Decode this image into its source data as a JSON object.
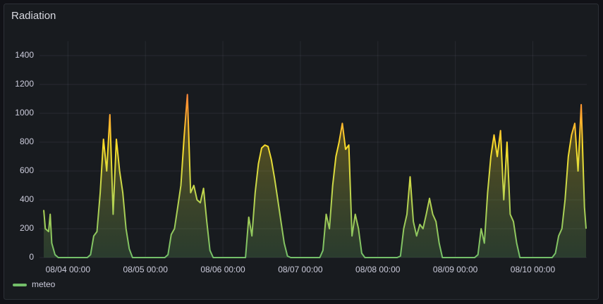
{
  "chart_data": {
    "type": "line",
    "title": "Radiation",
    "x": [
      "08/03 16:30",
      "08/03 17:00",
      "08/03 18:00",
      "08/03 18:30",
      "08/03 19:00",
      "08/03 20:00",
      "08/03 21:00",
      "08/04 06:00",
      "08/04 07:00",
      "08/04 08:00",
      "08/04 09:00",
      "08/04 10:00",
      "08/04 11:00",
      "08/04 12:00",
      "08/04 13:00",
      "08/04 14:00",
      "08/04 15:00",
      "08/04 16:00",
      "08/04 17:00",
      "08/04 18:00",
      "08/04 19:00",
      "08/04 20:00",
      "08/05 06:00",
      "08/05 07:00",
      "08/05 08:00",
      "08/05 09:00",
      "08/05 10:00",
      "08/05 11:00",
      "08/05 12:00",
      "08/05 13:00",
      "08/05 14:00",
      "08/05 15:00",
      "08/05 16:00",
      "08/05 17:00",
      "08/05 18:00",
      "08/05 19:00",
      "08/05 20:00",
      "08/05 21:00",
      "08/06 07:00",
      "08/06 08:00",
      "08/06 09:00",
      "08/06 10:00",
      "08/06 11:00",
      "08/06 12:00",
      "08/06 13:00",
      "08/06 14:00",
      "08/06 15:00",
      "08/06 16:00",
      "08/06 17:00",
      "08/06 18:00",
      "08/06 19:00",
      "08/06 20:00",
      "08/06 21:00",
      "08/07 06:00",
      "08/07 07:00",
      "08/07 08:00",
      "08/07 09:00",
      "08/07 10:00",
      "08/07 11:00",
      "08/07 12:00",
      "08/07 13:00",
      "08/07 14:00",
      "08/07 15:00",
      "08/07 16:00",
      "08/07 17:00",
      "08/07 18:00",
      "08/07 19:00",
      "08/07 20:00",
      "08/08 06:00",
      "08/08 07:00",
      "08/08 08:00",
      "08/08 09:00",
      "08/08 10:00",
      "08/08 11:00",
      "08/08 12:00",
      "08/08 13:00",
      "08/08 14:00",
      "08/08 15:00",
      "08/08 16:00",
      "08/08 17:00",
      "08/08 18:00",
      "08/08 19:00",
      "08/08 20:00",
      "08/09 06:00",
      "08/09 07:00",
      "08/09 08:00",
      "08/09 09:00",
      "08/09 10:00",
      "08/09 11:00",
      "08/09 12:00",
      "08/09 13:00",
      "08/09 14:00",
      "08/09 15:00",
      "08/09 16:00",
      "08/09 17:00",
      "08/09 18:00",
      "08/09 19:00",
      "08/09 20:00",
      "08/10 06:00",
      "08/10 07:00",
      "08/10 08:00",
      "08/10 09:00",
      "08/10 10:00",
      "08/10 11:00",
      "08/10 12:00",
      "08/10 13:00",
      "08/10 14:00",
      "08/10 15:00",
      "08/10 16:00",
      "08/10 16:30"
    ],
    "series": [
      {
        "name": "meteo",
        "color": "#73bf69",
        "values": [
          330,
          200,
          180,
          300,
          100,
          20,
          0,
          0,
          20,
          150,
          180,
          450,
          820,
          600,
          990,
          300,
          820,
          600,
          450,
          200,
          60,
          0,
          0,
          20,
          160,
          200,
          350,
          500,
          840,
          1130,
          450,
          500,
          400,
          380,
          480,
          250,
          50,
          0,
          0,
          280,
          150,
          450,
          650,
          760,
          780,
          770,
          680,
          550,
          400,
          250,
          100,
          10,
          0,
          0,
          50,
          300,
          200,
          500,
          700,
          800,
          930,
          750,
          780,
          150,
          300,
          200,
          30,
          0,
          0,
          10,
          200,
          300,
          560,
          250,
          150,
          230,
          200,
          300,
          410,
          300,
          250,
          100,
          0,
          0,
          20,
          200,
          100,
          450,
          700,
          850,
          700,
          880,
          400,
          800,
          300,
          250,
          100,
          0,
          0,
          30,
          150,
          200,
          400,
          700,
          850,
          930,
          600,
          1060,
          350,
          200
        ]
      }
    ],
    "xlim": [
      "08/03 16:30",
      "08/10 16:30"
    ],
    "xticks": [
      "08/04 00:00",
      "08/05 00:00",
      "08/06 00:00",
      "08/07 00:00",
      "08/08 00:00",
      "08/09 00:00",
      "08/10 00:00"
    ],
    "ylim": [
      0,
      1500
    ],
    "yticks": [
      0,
      200,
      400,
      600,
      800,
      1000,
      1200,
      1400
    ],
    "grid": true,
    "legend": "bottom-left"
  }
}
